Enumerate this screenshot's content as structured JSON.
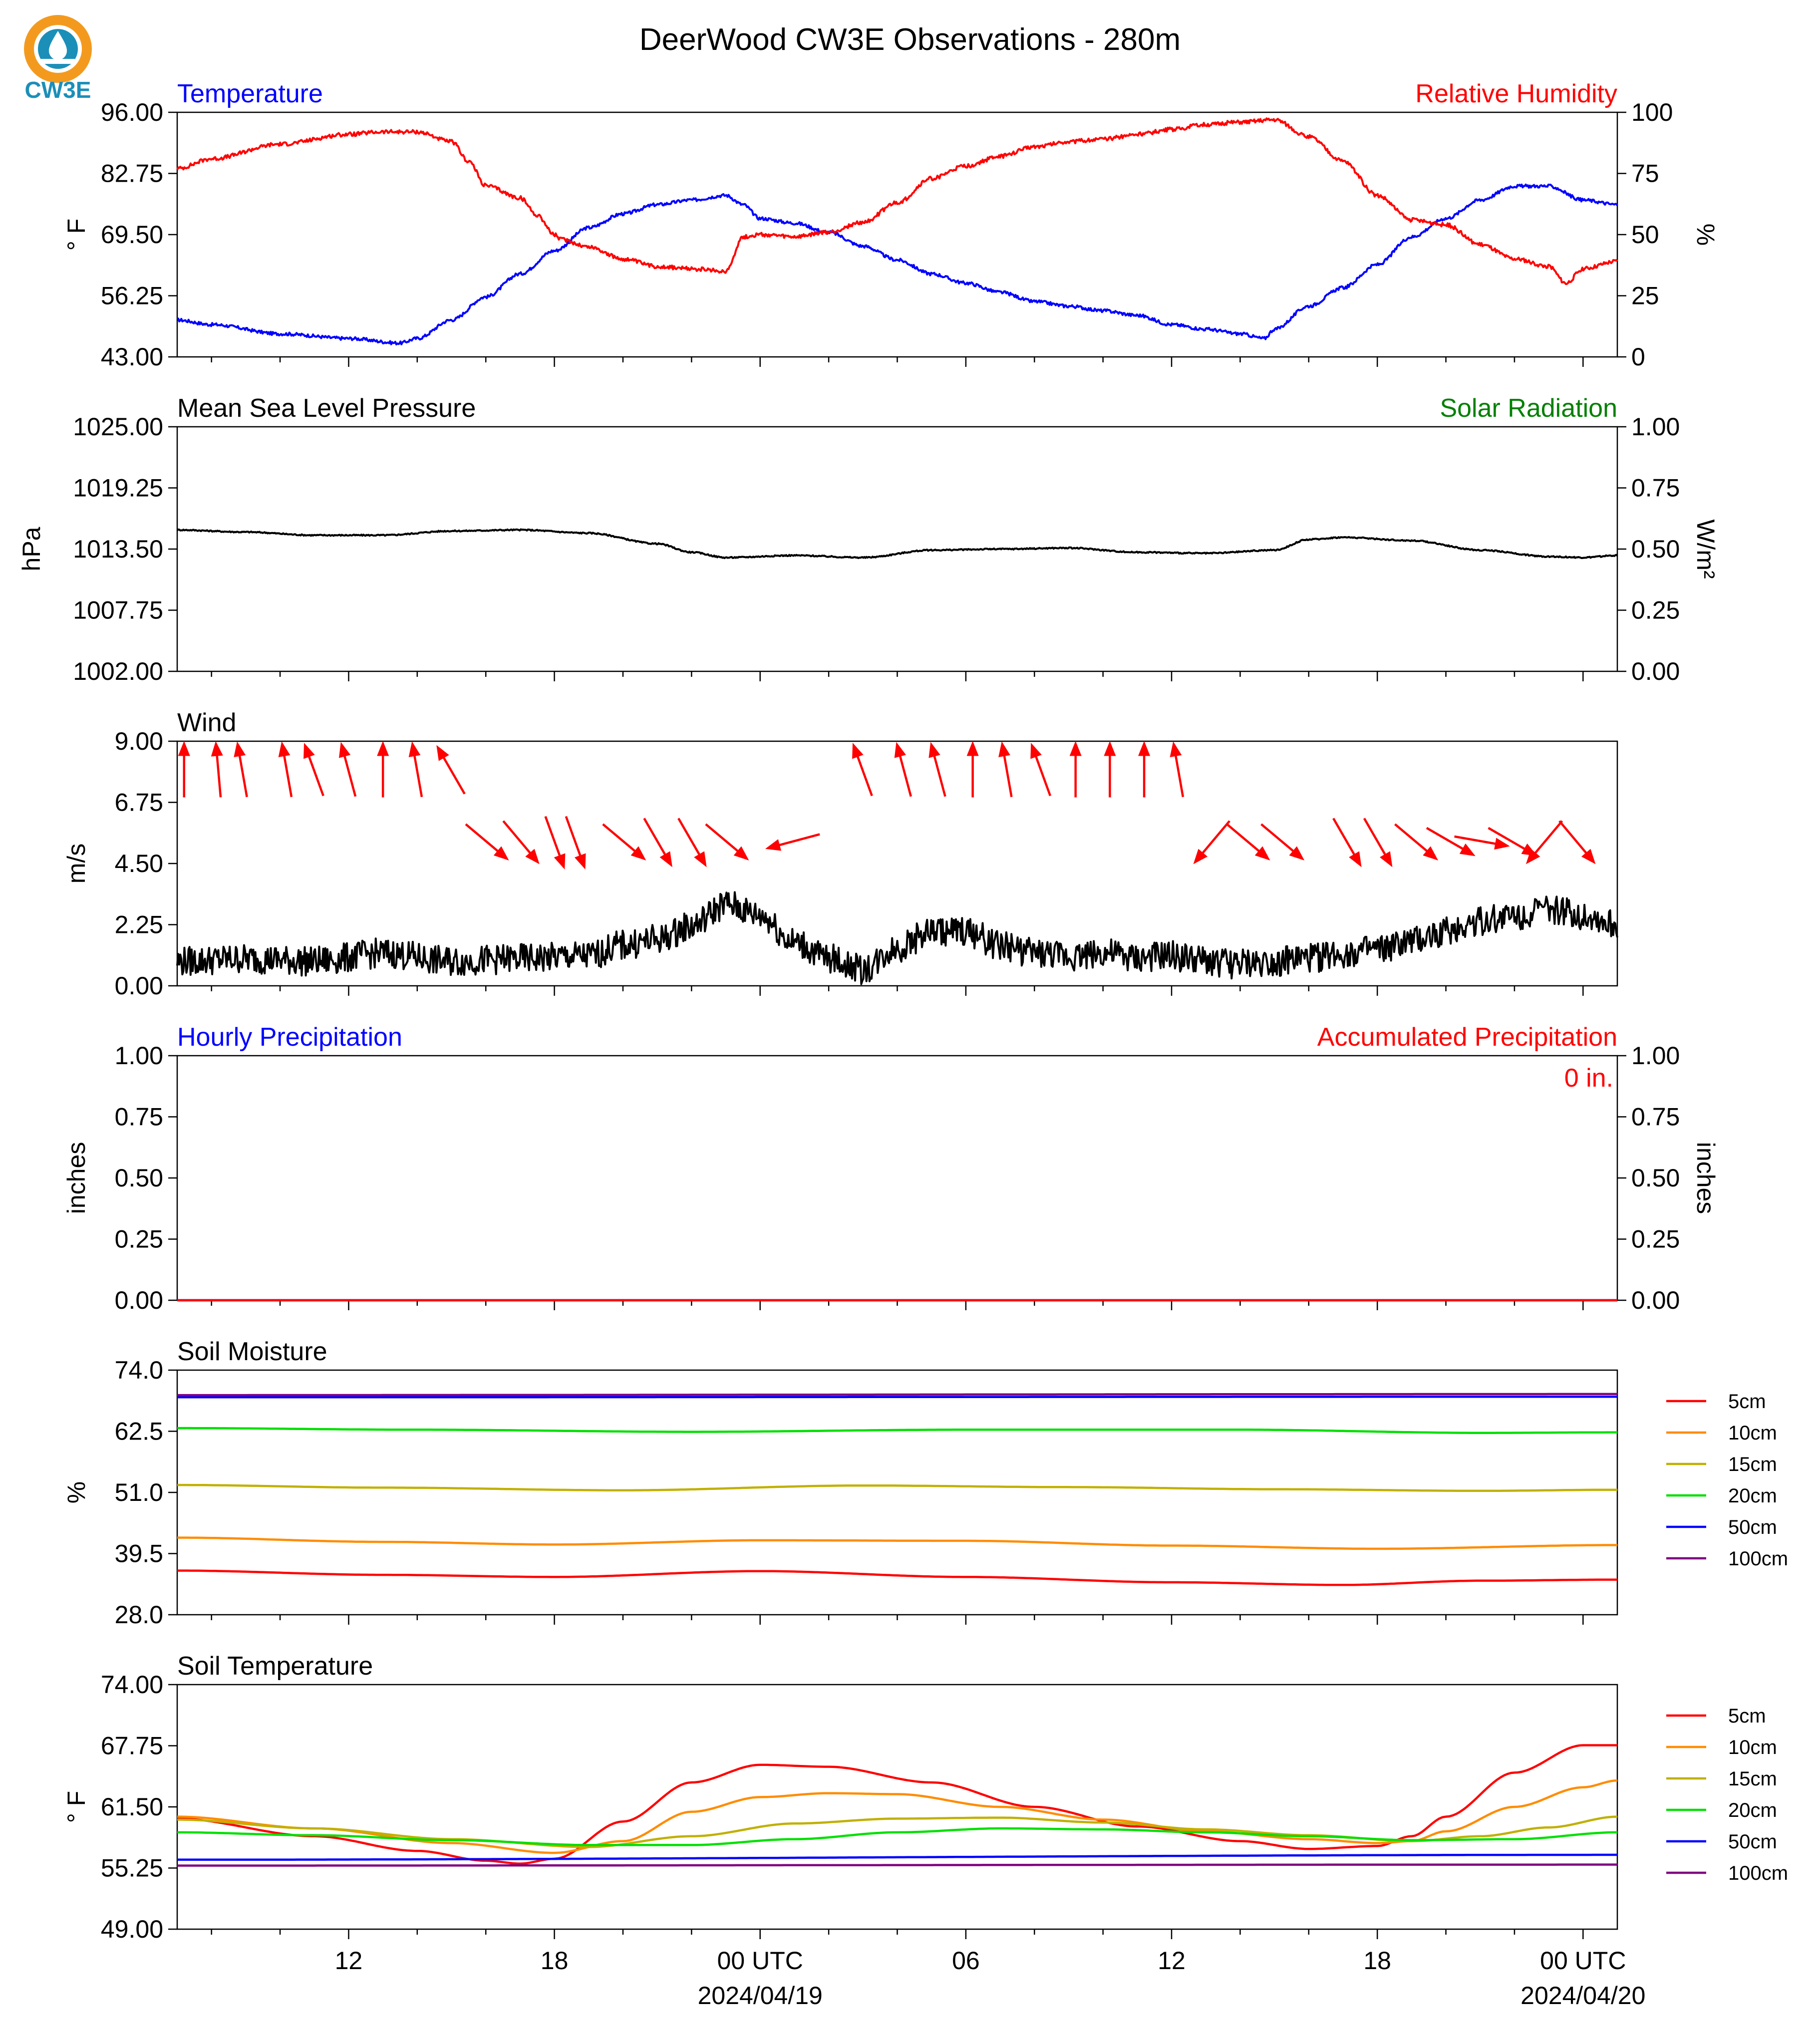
{
  "title": "DeerWood CW3E Observations - 280m",
  "logo": {
    "text": "CW3E",
    "icon": "cw3e-water-drop-logo",
    "accent": "#f39a1e",
    "brand": "#1b8fb8"
  },
  "x_axis": {
    "ticks": [
      "12",
      "18",
      "00 UTC",
      "06",
      "12",
      "18",
      "00 UTC"
    ],
    "tick_hours": [
      12,
      18,
      24,
      30,
      36,
      42,
      48
    ],
    "dates": [
      "2024/04/19",
      "2024/04/20"
    ],
    "date_hours": [
      24,
      48
    ],
    "range_hours": [
      7,
      49
    ],
    "note": "hours since 2024-04-18 00 UTC"
  },
  "chart_data": [
    {
      "type": "line",
      "name": "temperature-humidity",
      "left_title": "Temperature",
      "right_title": "Relative Humidity",
      "ylabel": "° F",
      "y2label": "%",
      "ylim": [
        43,
        96
      ],
      "y2lim": [
        0,
        100
      ],
      "yticks": [
        "43.00",
        "56.25",
        "69.50",
        "82.75",
        "96.00"
      ],
      "y2ticks": [
        "0",
        "25",
        "50",
        "75",
        "100"
      ],
      "colors": {
        "left_title": "#0000ff",
        "right_title": "#ff0000"
      },
      "series": [
        {
          "name": "Temperature",
          "axis": "left",
          "color": "#0000ff",
          "noise": 0.35,
          "x": [
            7,
            8,
            10,
            12,
            13.5,
            14,
            15,
            16,
            17,
            18,
            19,
            20,
            21,
            22,
            23,
            23.5,
            24,
            25,
            26,
            27,
            28,
            29,
            30,
            31,
            32,
            33,
            34,
            35,
            36,
            37,
            38,
            38.7,
            39,
            40,
            41,
            42,
            43,
            44,
            45,
            46,
            47,
            48,
            49
          ],
          "y": [
            51,
            50,
            48,
            47,
            46,
            47,
            51,
            56,
            61,
            66,
            71,
            74,
            76,
            77,
            78,
            76,
            73,
            72,
            70,
            67,
            64,
            61,
            59,
            57,
            55,
            54,
            53,
            52,
            50,
            49,
            48,
            47,
            49,
            54,
            58,
            63,
            69,
            73,
            77,
            80,
            80,
            77,
            76
          ]
        },
        {
          "name": "Relative Humidity",
          "axis": "right",
          "color": "#ff0000",
          "noise": 0.8,
          "x": [
            7,
            8,
            10,
            12,
            13,
            14,
            15,
            15.5,
            16,
            17,
            17.5,
            18,
            18.2,
            19,
            20,
            21,
            22,
            23,
            23.5,
            24,
            25,
            26,
            27,
            28,
            29,
            30,
            31,
            32,
            33,
            34,
            35,
            36,
            37,
            38,
            39,
            40,
            41,
            42,
            43,
            44,
            45,
            46,
            47,
            47.5,
            48,
            49
          ],
          "y": [
            77,
            81,
            87,
            91,
            92,
            92,
            88,
            80,
            70,
            65,
            58,
            50,
            48,
            45,
            40,
            37,
            36,
            35,
            49,
            50,
            49,
            51,
            55,
            63,
            73,
            78,
            82,
            86,
            88,
            89,
            91,
            93,
            95,
            96,
            97,
            90,
            80,
            66,
            56,
            54,
            46,
            40,
            37,
            30,
            36,
            39
          ]
        }
      ]
    },
    {
      "type": "line",
      "name": "pressure-solar",
      "left_title": "Mean Sea Level Pressure",
      "right_title": "Solar Radiation",
      "ylabel": "hPa",
      "y2label": "W/m²",
      "ylim": [
        1002,
        1025
      ],
      "y2lim": [
        0,
        1
      ],
      "yticks": [
        "1002.00",
        "1007.75",
        "1013.50",
        "1019.25",
        "1025.00"
      ],
      "y2ticks": [
        "0.00",
        "0.25",
        "0.50",
        "0.75",
        "1.00"
      ],
      "colors": {
        "left_title": "#000000",
        "right_title": "#008000"
      },
      "series": [
        {
          "name": "Mean Sea Level Pressure",
          "axis": "left",
          "color": "#000000",
          "noise": 0.06,
          "x": [
            7,
            9,
            11,
            13,
            15,
            17,
            19,
            21,
            22,
            23,
            25,
            27,
            29,
            31,
            33,
            35,
            37,
            39,
            40,
            41,
            43,
            45,
            47,
            48,
            49
          ],
          "y": [
            1015.3,
            1015.1,
            1014.8,
            1014.8,
            1015.2,
            1015.3,
            1015.0,
            1014.0,
            1013.2,
            1012.7,
            1012.9,
            1012.7,
            1013.4,
            1013.5,
            1013.6,
            1013.2,
            1013.1,
            1013.4,
            1014.4,
            1014.6,
            1014.3,
            1013.4,
            1012.8,
            1012.7,
            1012.9
          ]
        }
      ]
    },
    {
      "type": "line",
      "name": "wind",
      "left_title": "Wind",
      "ylabel": "m/s",
      "ylim": [
        0,
        9
      ],
      "yticks": [
        "0.00",
        "2.25",
        "4.50",
        "6.75",
        "9.00"
      ],
      "colors": {
        "left_title": "#000000",
        "arrows": "#ff0000"
      },
      "series": [
        {
          "name": "Wind",
          "axis": "left",
          "color": "#000000",
          "noise": 0.55,
          "x": [
            7,
            9,
            11,
            13,
            15,
            17,
            19,
            20,
            21,
            22,
            23,
            24,
            25,
            26,
            27,
            28,
            29,
            30,
            31,
            32,
            33,
            34,
            35,
            36,
            37,
            38,
            39,
            40,
            41,
            42,
            43,
            44,
            45,
            46,
            47,
            48,
            49
          ],
          "y": [
            0.9,
            1.0,
            0.9,
            1.2,
            0.9,
            1.0,
            1.1,
            1.5,
            1.7,
            2.2,
            3.0,
            2.6,
            1.6,
            1.0,
            0.6,
            1.4,
            2.0,
            2.0,
            1.5,
            1.2,
            1.1,
            1.2,
            1.0,
            1.1,
            0.9,
            0.8,
            0.9,
            1.0,
            1.2,
            1.3,
            1.6,
            2.0,
            2.4,
            2.6,
            2.8,
            2.6,
            2.2
          ]
        }
      ],
      "wind_barbs": {
        "x": [
          7.2,
          8.2,
          8.9,
          10.2,
          11.0,
          12.0,
          13.0,
          14.0,
          15.0,
          16.0,
          17.0,
          18.0,
          18.6,
          20.0,
          21.0,
          22.0,
          23.0,
          25.0,
          27.0,
          28.2,
          29.2,
          30.2,
          31.2,
          32.2,
          33.2,
          34.2,
          35.2,
          36.2,
          37.2,
          38.2,
          39.2,
          41.1,
          42.0,
          43.1,
          44.1,
          45.0,
          45.9,
          46.9,
          47.8
        ],
        "direction_deg": [
          180,
          175,
          170,
          170,
          160,
          165,
          180,
          170,
          150,
          310,
          320,
          340,
          340,
          310,
          330,
          330,
          310,
          75,
          160,
          165,
          165,
          180,
          170,
          160,
          180,
          180,
          180,
          170,
          40,
          310,
          310,
          330,
          330,
          310,
          300,
          280,
          300,
          40,
          320
        ]
      }
    },
    {
      "type": "line",
      "name": "precipitation",
      "left_title": "Hourly Precipitation",
      "right_title": "Accumulated Precipitation",
      "ylabel": "inches",
      "y2label": "inches",
      "ylim": [
        0,
        1
      ],
      "y2lim": [
        0,
        1
      ],
      "yticks": [
        "0.00",
        "0.25",
        "0.50",
        "0.75",
        "1.00"
      ],
      "y2ticks": [
        "0.00",
        "0.25",
        "0.50",
        "0.75",
        "1.00"
      ],
      "annotation": "0 in.",
      "colors": {
        "left_title": "#0000ff",
        "right_title": "#ff0000"
      },
      "series": [
        {
          "name": "Hourly Precipitation",
          "axis": "left",
          "color": "#0000ff",
          "noise": 0,
          "x": [
            7,
            49
          ],
          "y": [
            0,
            0
          ]
        },
        {
          "name": "Accumulated Precipitation",
          "axis": "right",
          "color": "#ff0000",
          "noise": 0,
          "x": [
            7,
            49
          ],
          "y": [
            0,
            0
          ]
        }
      ]
    },
    {
      "type": "line",
      "name": "soil-moisture",
      "left_title": "Soil Moisture",
      "ylabel": "%",
      "ylim": [
        28,
        74
      ],
      "yticks": [
        "28.0",
        "39.5",
        "51.0",
        "62.5",
        "74.0"
      ],
      "colors": {
        "left_title": "#000000"
      },
      "legend": [
        "5cm",
        "10cm",
        "15cm",
        "20cm",
        "50cm",
        "100cm"
      ],
      "series": [
        {
          "name": "5cm",
          "axis": "left",
          "color": "#ff0000",
          "noise": 0,
          "x": [
            7,
            13,
            18,
            24,
            30,
            36,
            41,
            45,
            49
          ],
          "y": [
            36.3,
            35.5,
            35.1,
            36.2,
            35.1,
            34.1,
            33.6,
            34.4,
            34.6
          ]
        },
        {
          "name": "10cm",
          "axis": "left",
          "color": "#ff8c00",
          "noise": 0,
          "x": [
            7,
            13,
            18,
            24,
            30,
            36,
            42,
            49
          ],
          "y": [
            42.5,
            41.7,
            41.2,
            42.0,
            41.9,
            41.0,
            40.4,
            41.1
          ]
        },
        {
          "name": "15cm",
          "axis": "left",
          "color": "#c0b000",
          "noise": 0,
          "x": [
            7,
            13,
            20,
            27,
            33,
            39,
            45,
            49
          ],
          "y": [
            52.4,
            51.9,
            51.4,
            52.3,
            52.0,
            51.6,
            51.3,
            51.5
          ]
        },
        {
          "name": "20cm",
          "axis": "left",
          "color": "#00e000",
          "noise": 0,
          "x": [
            7,
            14,
            22,
            30,
            38,
            45,
            49
          ],
          "y": [
            63.1,
            62.8,
            62.4,
            62.8,
            62.8,
            62.2,
            62.3
          ]
        },
        {
          "name": "50cm",
          "axis": "left",
          "color": "#0000ff",
          "noise": 0,
          "x": [
            7,
            49
          ],
          "y": [
            68.9,
            69.0
          ]
        },
        {
          "name": "100cm",
          "axis": "left",
          "color": "#800080",
          "noise": 0,
          "x": [
            7,
            49
          ],
          "y": [
            69.3,
            69.5
          ]
        }
      ]
    },
    {
      "type": "line",
      "name": "soil-temperature",
      "left_title": "Soil Temperature",
      "ylabel": "° F",
      "ylim": [
        49,
        74
      ],
      "yticks": [
        "49.00",
        "55.25",
        "61.50",
        "67.75",
        "74.00"
      ],
      "colors": {
        "left_title": "#000000"
      },
      "legend": [
        "5cm",
        "10cm",
        "15cm",
        "20cm",
        "50cm",
        "100cm"
      ],
      "series": [
        {
          "name": "5cm",
          "axis": "left",
          "color": "#ff0000",
          "noise": 0,
          "x": [
            7,
            11,
            14,
            16,
            17,
            18,
            20,
            22,
            24,
            26,
            29,
            32,
            35,
            38,
            40,
            42,
            43,
            44,
            46,
            48,
            49
          ],
          "y": [
            60.3,
            58.5,
            57.0,
            56.0,
            55.7,
            56.2,
            60.0,
            64.0,
            65.8,
            65.6,
            64.0,
            61.5,
            59.5,
            58.0,
            57.2,
            57.5,
            58.5,
            60.5,
            65.0,
            67.8,
            67.8
          ]
        },
        {
          "name": "10cm",
          "axis": "left",
          "color": "#ff8c00",
          "noise": 0,
          "x": [
            7,
            11,
            15,
            18,
            20,
            22,
            24,
            26,
            28,
            31,
            34,
            37,
            40,
            42,
            43,
            44,
            46,
            48,
            49
          ],
          "y": [
            60.5,
            59.3,
            57.8,
            56.8,
            58.0,
            61.0,
            62.5,
            62.9,
            62.8,
            61.5,
            60.2,
            59.0,
            58.2,
            57.8,
            58.0,
            59.0,
            61.5,
            63.5,
            64.2
          ]
        },
        {
          "name": "15cm",
          "axis": "left",
          "color": "#c0b000",
          "noise": 0,
          "x": [
            7,
            11,
            15,
            19,
            22,
            25,
            28,
            31,
            34,
            37,
            40,
            43,
            45,
            47,
            49
          ],
          "y": [
            60.2,
            59.3,
            58.2,
            57.4,
            58.5,
            59.8,
            60.3,
            60.4,
            59.9,
            59.2,
            58.6,
            58.0,
            58.5,
            59.4,
            60.5
          ]
        },
        {
          "name": "20cm",
          "axis": "left",
          "color": "#00e000",
          "noise": 0,
          "x": [
            7,
            11,
            15,
            19,
            22,
            25,
            28,
            31,
            34,
            37,
            40,
            43,
            46,
            49
          ],
          "y": [
            58.9,
            58.6,
            58.1,
            57.6,
            57.6,
            58.2,
            58.9,
            59.3,
            59.2,
            58.9,
            58.5,
            58.1,
            58.2,
            58.9
          ]
        },
        {
          "name": "50cm",
          "axis": "left",
          "color": "#0000ff",
          "noise": 0,
          "x": [
            7,
            49
          ],
          "y": [
            56.1,
            56.6
          ]
        },
        {
          "name": "100cm",
          "axis": "left",
          "color": "#800080",
          "noise": 0,
          "x": [
            7,
            49
          ],
          "y": [
            55.5,
            55.6
          ]
        }
      ]
    }
  ]
}
